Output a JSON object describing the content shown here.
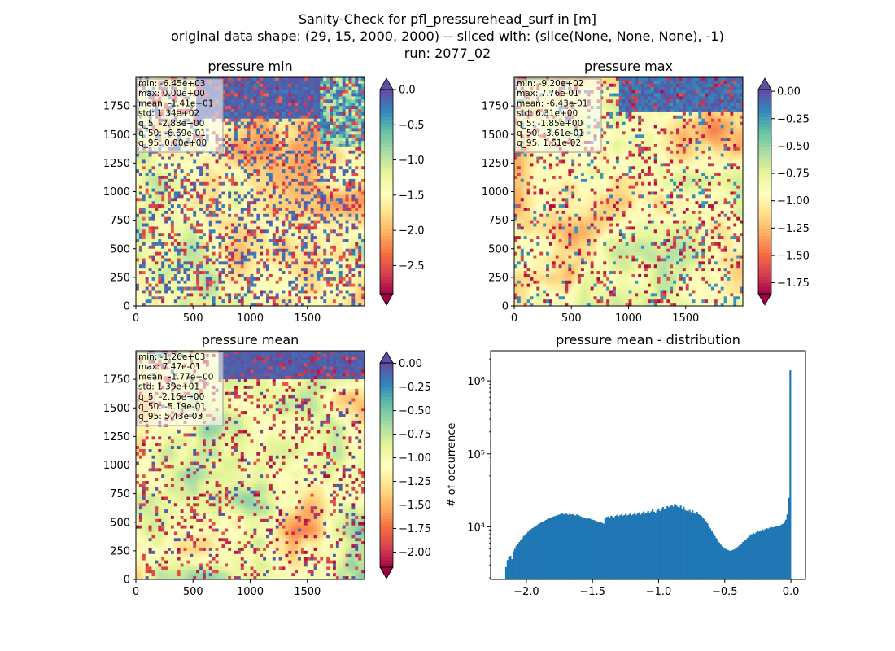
{
  "figure": {
    "title_lines": [
      "Sanity-Check for pfl_pressurehead_surf in [m]",
      "original data shape: (29, 15, 2000, 2000) -- sliced with: (slice(None, None, None), -1)",
      "run: 2077_02"
    ]
  },
  "chart_data": [
    {
      "type": "heatmap",
      "title": "pressure min",
      "colormap": "Spectral",
      "xticks": [
        "0",
        "500",
        "1000",
        "1500"
      ],
      "yticks": [
        "0",
        "250",
        "500",
        "750",
        "1000",
        "1250",
        "1500",
        "1750"
      ],
      "xlim": [
        0,
        2000
      ],
      "ylim": [
        0,
        2000
      ],
      "colorbar": {
        "min": -2.9,
        "max": 0.0,
        "ticks": [
          0.0,
          -0.5,
          -1.0,
          -1.5,
          -2.0,
          -2.5
        ],
        "tick_labels": [
          "0.0",
          "−0.5",
          "−1.0",
          "−1.5",
          "−2.0",
          "−2.5"
        ],
        "extend_top": true,
        "extend_bottom": true
      },
      "stats": [
        "min: -6.45e+03",
        "max: 0.00e+00",
        "mean: -1.41e+01",
        "std: 1.34e+02",
        "q_5: -2.88e+00",
        "q_50: -6.69e-01",
        "q_95: 0.00e+00"
      ]
    },
    {
      "type": "heatmap",
      "title": "pressure max",
      "colormap": "Spectral",
      "xticks": [
        "0",
        "500",
        "1000",
        "1500"
      ],
      "yticks": [
        "0",
        "250",
        "500",
        "750",
        "1000",
        "1250",
        "1500",
        "1750"
      ],
      "xlim": [
        0,
        2000
      ],
      "ylim": [
        0,
        2000
      ],
      "colorbar": {
        "min": -1.85,
        "max": 0.016,
        "ticks": [
          0.0,
          -0.25,
          -0.5,
          -0.75,
          -1.0,
          -1.25,
          -1.5,
          -1.75
        ],
        "tick_labels": [
          "0.00",
          "−0.25",
          "−0.50",
          "−0.75",
          "−1.00",
          "−1.25",
          "−1.50",
          "−1.75"
        ],
        "extend_top": true,
        "extend_bottom": true
      },
      "stats": [
        "min: -9.20e+02",
        "max: 7.76e-01",
        "mean: -6.43e-01",
        "std: 6.31e+00",
        "q_5: -1.85e+00",
        "q_50: -3.61e-01",
        "q_95: 1.61e-02"
      ]
    },
    {
      "type": "heatmap",
      "title": "pressure mean",
      "colormap": "Spectral",
      "xticks": [
        "0",
        "500",
        "1000",
        "1500"
      ],
      "yticks": [
        "0",
        "250",
        "500",
        "750",
        "1000",
        "1250",
        "1500",
        "1750"
      ],
      "xlim": [
        0,
        2000
      ],
      "ylim": [
        0,
        2000
      ],
      "colorbar": {
        "min": -2.16,
        "max": 0.0054,
        "ticks": [
          0.0,
          -0.25,
          -0.5,
          -0.75,
          -1.0,
          -1.25,
          -1.5,
          -1.75,
          -2.0
        ],
        "tick_labels": [
          "0.00",
          "−0.25",
          "−0.50",
          "−0.75",
          "−1.00",
          "−1.25",
          "−1.50",
          "−1.75",
          "−2.00"
        ],
        "extend_top": true,
        "extend_bottom": true
      },
      "stats": [
        "min: -1.26e+03",
        "max: 7.47e-01",
        "mean: -1.77e+00",
        "std: 1.39e+01",
        "q_5: -2.16e+00",
        "q_50: -5.19e-01",
        "q_95: 5.43e-03"
      ]
    },
    {
      "type": "bar",
      "title": "pressure mean - distribution",
      "ylabel": "# of occurrence",
      "xlabel": "",
      "yscale": "log",
      "xlim": [
        -2.27,
        0.11
      ],
      "ylim": [
        1900,
        2600000
      ],
      "xticks": [
        -2.0,
        -1.5,
        -1.0,
        -0.5,
        0.0
      ],
      "xtick_labels": [
        "−2.0",
        "−1.5",
        "−1.0",
        "−0.5",
        "0.0"
      ],
      "yticks": [
        10000,
        100000,
        1000000
      ],
      "ytick_labels": [
        "10⁴",
        "10⁵",
        "10⁶"
      ],
      "bar_color": "#1f77b4",
      "bin_range": [
        -2.16,
        0.0
      ],
      "values": [
        2800,
        3500,
        3900,
        4000,
        3600,
        4600,
        5000,
        5500,
        5800,
        6200,
        6600,
        7000,
        7500,
        7800,
        8200,
        8600,
        9000,
        9300,
        9600,
        9900,
        10200,
        10500,
        10900,
        11200,
        11500,
        11800,
        12100,
        12400,
        12700,
        13000,
        13200,
        13500,
        13800,
        14000,
        14200,
        14500,
        14700,
        14900,
        15200,
        14800,
        15300,
        15000,
        14600,
        15100,
        14700,
        14900,
        14500,
        14200,
        14800,
        14400,
        14000,
        13700,
        13500,
        13200,
        13000,
        12900,
        13100,
        12800,
        12600,
        12400,
        12200,
        11900,
        11600,
        11500,
        11700,
        11300,
        11000,
        13000,
        13600,
        13900,
        13400,
        14200,
        13800,
        13500,
        14100,
        14600,
        13900,
        14400,
        14800,
        14200,
        14500,
        15100,
        14300,
        14700,
        15300,
        14400,
        14900,
        15500,
        14600,
        15200,
        15800,
        14700,
        15500,
        16200,
        15100,
        15700,
        16500,
        15300,
        16300,
        17600,
        16100,
        15600,
        16700,
        17900,
        16500,
        17300,
        18700,
        17400,
        17900,
        19200,
        18600,
        19500,
        20100,
        19000,
        20800,
        19800,
        18800,
        18400,
        19600,
        17500,
        18900,
        17000,
        16600,
        16300,
        17100,
        15800,
        16900,
        15500,
        15000,
        16000,
        14900,
        14500,
        14000,
        13400,
        12800,
        12000,
        11200,
        10300,
        9500,
        8800,
        8100,
        7500,
        7000,
        6500,
        6100,
        5700,
        5400,
        5200,
        5000,
        4900,
        4800,
        4700,
        4700,
        4800,
        4900,
        5000,
        5200,
        5400,
        5600,
        5900,
        6200,
        6500,
        6700,
        7000,
        7300,
        7600,
        7900,
        8200,
        8000,
        8400,
        8700,
        8600,
        8900,
        9200,
        9000,
        9300,
        9600,
        9400,
        9700,
        10000,
        9800,
        9900,
        10100,
        10300,
        10200,
        10400,
        10700,
        11000,
        11600,
        12500,
        14800,
        25000,
        1400000
      ]
    }
  ]
}
